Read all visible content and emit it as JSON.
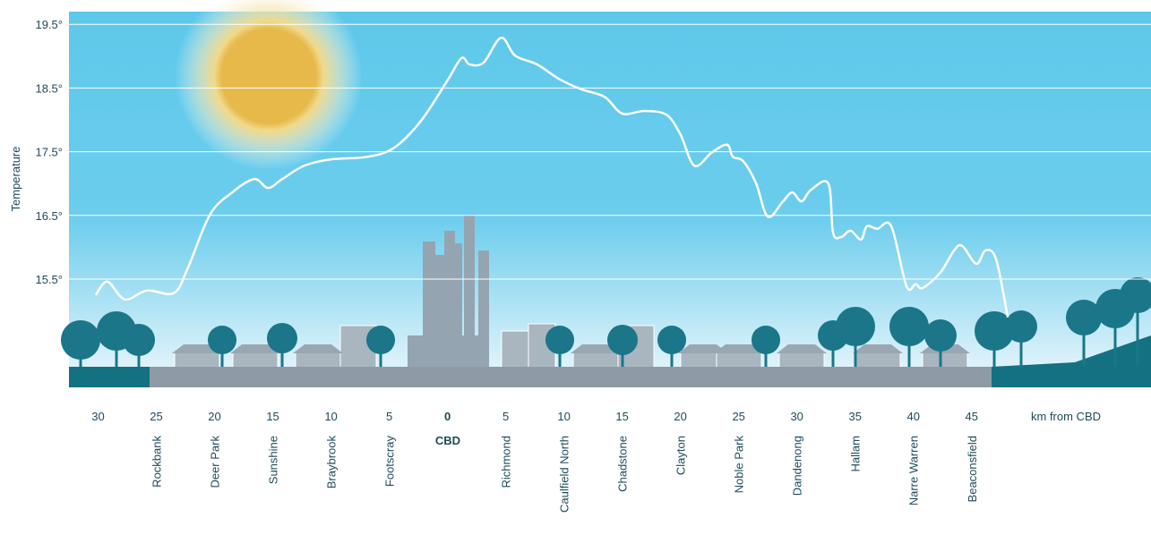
{
  "chart_data": {
    "type": "line",
    "y_label": "Temperature",
    "x_unit_label": "km from CBD",
    "cbd_label": "CBD",
    "xlim": [
      -32.5,
      60.4
    ],
    "ylim": [
      13.8,
      19.7
    ],
    "xticks": [
      {
        "value": -30,
        "label": "30"
      },
      {
        "value": -25,
        "label": "25"
      },
      {
        "value": -20,
        "label": "20"
      },
      {
        "value": -15,
        "label": "15"
      },
      {
        "value": -10,
        "label": "10"
      },
      {
        "value": -5,
        "label": "5"
      },
      0,
      5,
      10,
      15,
      20,
      25,
      30,
      35,
      40,
      45
    ],
    "yticks": [
      {
        "value": 15.5,
        "label": "15.5°"
      },
      {
        "value": 16.5,
        "label": "16.5°"
      },
      {
        "value": 17.5,
        "label": "17.5°"
      },
      {
        "value": 18.5,
        "label": "18.5°"
      },
      {
        "value": 19.5,
        "label": "19.5°"
      }
    ],
    "grid": true,
    "places": [
      {
        "name": "Rockbank",
        "x": -25
      },
      {
        "name": "Deer Park",
        "x": -20
      },
      {
        "name": "Sunshine",
        "x": -15
      },
      {
        "name": "Braybrook",
        "x": -10
      },
      {
        "name": "Footscray",
        "x": -5
      },
      {
        "name": "Richmond",
        "x": 5
      },
      {
        "name": "Caulfield North",
        "x": 10
      },
      {
        "name": "Chadstone",
        "x": 15
      },
      {
        "name": "Clayton",
        "x": 20
      },
      {
        "name": "Noble Park",
        "x": 25
      },
      {
        "name": "Dandenong",
        "x": 30
      },
      {
        "name": "Hallam",
        "x": 35
      },
      {
        "name": "Narre Warren",
        "x": 40
      },
      {
        "name": "Beaconsfield",
        "x": 45
      }
    ],
    "color": "#ffffff",
    "x": [
      -30.2,
      -29.2,
      -27.7,
      -25.8,
      -23.5,
      -22.3,
      -20.4,
      -18.5,
      -16.6,
      -15.4,
      -14.2,
      -12.3,
      -10.0,
      -6.9,
      -4.6,
      -2.3,
      0,
      1.2,
      1.9,
      3.1,
      4.6,
      5.8,
      7.7,
      9.6,
      11.5,
      13.5,
      15.0,
      16.9,
      18.8,
      20.0,
      21.2,
      22.7,
      24.0,
      24.5,
      25.4,
      26.5,
      27.5,
      28.8,
      29.6,
      30.4,
      31.2,
      32.7,
      33.1,
      33.8,
      34.6,
      35.5,
      36.0,
      36.9,
      38.1,
      39.4,
      40.2,
      40.8,
      42.3,
      43.5,
      44.2,
      45.4,
      46.2,
      47.1,
      48.1
    ],
    "values": [
      15.25,
      15.46,
      15.18,
      15.32,
      15.28,
      15.67,
      16.51,
      16.86,
      17.07,
      16.93,
      17.07,
      17.28,
      17.38,
      17.42,
      17.56,
      17.98,
      18.62,
      18.97,
      18.87,
      18.9,
      19.29,
      19.01,
      18.87,
      18.64,
      18.48,
      18.36,
      18.1,
      18.14,
      18.08,
      17.77,
      17.28,
      17.49,
      17.61,
      17.42,
      17.35,
      17.0,
      16.48,
      16.72,
      16.86,
      16.72,
      16.9,
      17.0,
      16.23,
      16.16,
      16.26,
      16.12,
      16.33,
      16.29,
      16.33,
      15.39,
      15.42,
      15.36,
      15.6,
      15.95,
      16.02,
      15.74,
      15.95,
      15.81,
      14.9
    ]
  }
}
